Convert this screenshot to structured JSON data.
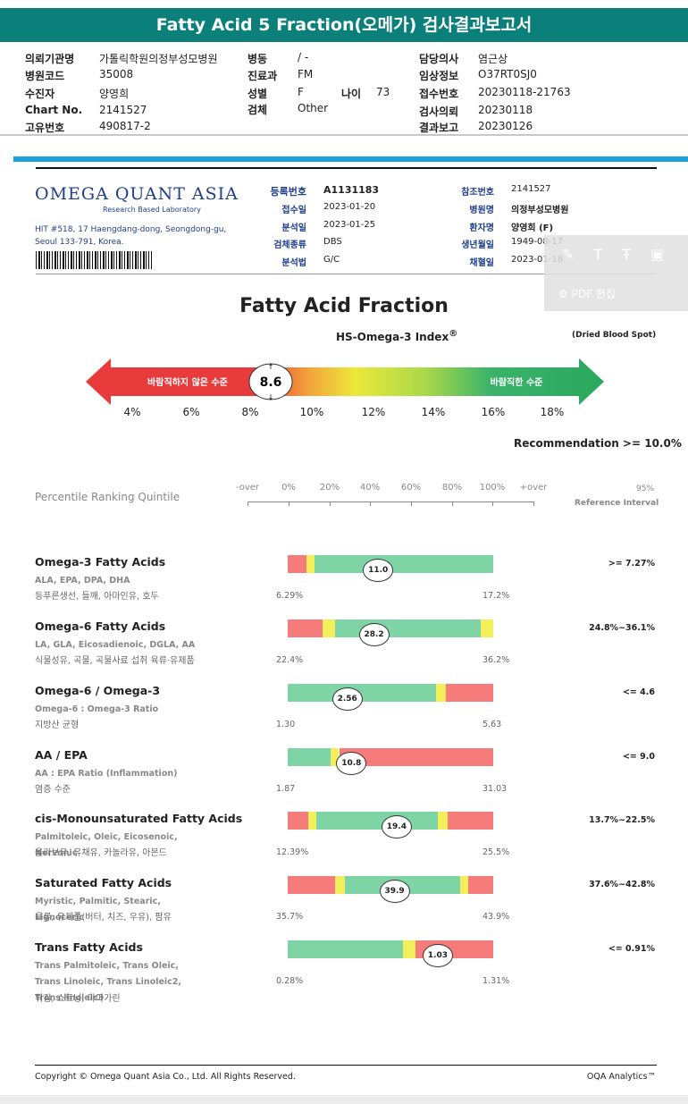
{
  "report_title": "Fatty Acid 5 Fraction(오메가) 검사결과보고서",
  "request": {
    "c1": [
      {
        "label": "의뢰기관명",
        "value": "가톨릭학원의정부성모병원"
      },
      {
        "label": "병원코드",
        "value": "35008"
      },
      {
        "label": "수진자",
        "value": "양영희"
      },
      {
        "label": "Chart No.",
        "value": "2141527"
      },
      {
        "label": "고유번호",
        "value": "490817-2"
      }
    ],
    "c2": [
      {
        "label": "병동",
        "value": "/ -"
      },
      {
        "label": "진료과",
        "value": "FM"
      },
      {
        "label": "성별",
        "value": "F"
      },
      {
        "label": "검체",
        "value": "Other"
      }
    ],
    "age_label": "나이",
    "age_value": "73",
    "c3": [
      {
        "label": "담당의사",
        "value": "염근상"
      },
      {
        "label": "임상정보",
        "value": "O37RT0SJ0"
      },
      {
        "label": "접수번호",
        "value": "20230118-21763"
      },
      {
        "label": "검사의뢰",
        "value": "20230118"
      },
      {
        "label": "결과보고",
        "value": "20230126"
      }
    ]
  },
  "lab": {
    "logo": "OMEGA QUANT ASIA",
    "logo_sub": "Research Based Laboratory",
    "address": "HIT #518, 17 Haengdang-dong, Seongdong-gu, Seoul 133-791, Korea.",
    "left": [
      {
        "k": "등록번호",
        "v": "A1131183"
      },
      {
        "k": "접수일",
        "v": "2023-01-20"
      },
      {
        "k": "분석일",
        "v": "2023-01-25"
      },
      {
        "k": "검체종류",
        "v": "DBS"
      },
      {
        "k": "분석법",
        "v": "G/C"
      }
    ],
    "right": [
      {
        "k": "참조번호",
        "v": "2141527"
      },
      {
        "k": "병원명",
        "v": "의정부성모병원"
      },
      {
        "k": "환자명",
        "v": "양영희 (F)"
      },
      {
        "k": "생년월일",
        "v": "1949-08-17"
      },
      {
        "k": "채혈일",
        "v": "2023-01-18"
      }
    ]
  },
  "pdf_overlay": {
    "label": "PDF 편집",
    "icons": [
      "pencil-icon",
      "text-icon",
      "text-strike-icon",
      "stamp-icon"
    ]
  },
  "main_title": "Fatty Acid Fraction",
  "index_title": "HS-Omega-3 Index",
  "index_sup": "®",
  "sample_type": "(Dried Blood Spot)",
  "index": {
    "bad_label": "바람직하지 않은 수준",
    "good_label": "바람직한 수준",
    "value": "8.6",
    "ticks": [
      "4%",
      "6%",
      "8%",
      "10%",
      "12%",
      "14%",
      "16%",
      "18%"
    ],
    "recommendation": "Recommendation  >= 10.0%"
  },
  "percentile": {
    "label": "Percentile Ranking Quintile",
    "ticks": [
      "-over",
      "0%",
      "20%",
      "40%",
      "60%",
      "80%",
      "100%",
      "+over"
    ],
    "ref1": "95%",
    "ref2": "Reference Interval"
  },
  "colors": {
    "red": "#f67b7b",
    "yellow": "#f3ef5a",
    "green": "#7fd4a5",
    "teal": "#0b7f7a",
    "blue": "#1aa1d8"
  },
  "rows": [
    {
      "name": "Omega-3 Fatty Acids",
      "sub": "ALA, EPA, DPA, DHA",
      "food": "등푸른생선, 들깨, 아마인유, 호두",
      "min": "6.29%",
      "max": "17.2%",
      "value": "11.0",
      "marker_pos": 0.44,
      "ref": ">= 7.27%",
      "segs": [
        [
          "red",
          0,
          0.09
        ],
        [
          "yellow",
          0.09,
          0.13
        ],
        [
          "green",
          0.13,
          1.0
        ]
      ]
    },
    {
      "name": "Omega-6 Fatty Acids",
      "sub": "LA, GLA, Eicosadienoic, DGLA, AA",
      "food": "식물성유, 곡물, 곡물사료 섭취 육류·유제품",
      "min": "22.4%",
      "max": "36.2%",
      "value": "28.2",
      "marker_pos": 0.42,
      "ref": "24.8%~36.1%",
      "segs": [
        [
          "red",
          0,
          0.17
        ],
        [
          "yellow",
          0.17,
          0.23
        ],
        [
          "green",
          0.23,
          0.94
        ],
        [
          "yellow",
          0.94,
          1.0
        ]
      ]
    },
    {
      "name": "Omega-6 / Omega-3",
      "sub": "Omega-6 : Omega-3 Ratio",
      "food": "지방산 균형",
      "min": "1.30",
      "max": "5.63",
      "value": "2.56",
      "marker_pos": 0.29,
      "ref": "<= 4.6",
      "segs": [
        [
          "green",
          0,
          0.72
        ],
        [
          "yellow",
          0.72,
          0.77
        ],
        [
          "red",
          0.77,
          1.0
        ]
      ]
    },
    {
      "name": "AA / EPA",
      "sub": "AA : EPA Ratio (Inflammation)",
      "food": "염증 수준",
      "min": "1.87",
      "max": "31.03",
      "value": "10.8",
      "marker_pos": 0.31,
      "ref": "<= 9.0",
      "segs": [
        [
          "green",
          0,
          0.21
        ],
        [
          "yellow",
          0.21,
          0.25
        ],
        [
          "red",
          0.25,
          1.0
        ]
      ]
    },
    {
      "name": "cis-Monounsaturated Fatty Acids",
      "sub": "Palmitoleic, Oleic, Eicosenoic, Nervonic",
      "food": "올리브유, 유채유, 카놀라유, 아몬드",
      "min": "12.39%",
      "max": "25.5%",
      "value": "19.4",
      "marker_pos": 0.53,
      "ref": "13.7%~22.5%",
      "segs": [
        [
          "red",
          0,
          0.1
        ],
        [
          "yellow",
          0.1,
          0.14
        ],
        [
          "green",
          0.14,
          0.73
        ],
        [
          "yellow",
          0.73,
          0.78
        ],
        [
          "red",
          0.78,
          1.0
        ]
      ]
    },
    {
      "name": "Saturated Fatty Acids",
      "sub": "Myristic, Palmitic, Stearic, Lignoceric",
      "food": "육류, 유제품(버터, 치즈, 우유), 팜유",
      "min": "35.7%",
      "max": "43.9%",
      "value": "39.9",
      "marker_pos": 0.52,
      "ref": "37.6%~42.8%",
      "segs": [
        [
          "red",
          0,
          0.23
        ],
        [
          "yellow",
          0.23,
          0.28
        ],
        [
          "green",
          0.28,
          0.84
        ],
        [
          "yellow",
          0.84,
          0.88
        ],
        [
          "red",
          0.88,
          1.0
        ]
      ]
    },
    {
      "name": "Trans Fatty Acids",
      "sub": "Trans Palmitoleic, Trans Oleic, Trans Linoleic, Trans Linoleic2, Trans linoleic3",
      "food": "튀김, 쇼트닝, 마아가린",
      "min": "0.28%",
      "max": "1.31%",
      "value": "1.03",
      "marker_pos": 0.73,
      "ref": "<= 0.91%",
      "segs": [
        [
          "green",
          0,
          0.56
        ],
        [
          "yellow",
          0.56,
          0.62
        ],
        [
          "red",
          0.62,
          1.0
        ]
      ]
    }
  ],
  "footer": {
    "copyright": "Copyright © Omega Quant Asia Co., Ltd.  All Rights Reserved.",
    "brand": "OQA Analytics™"
  }
}
